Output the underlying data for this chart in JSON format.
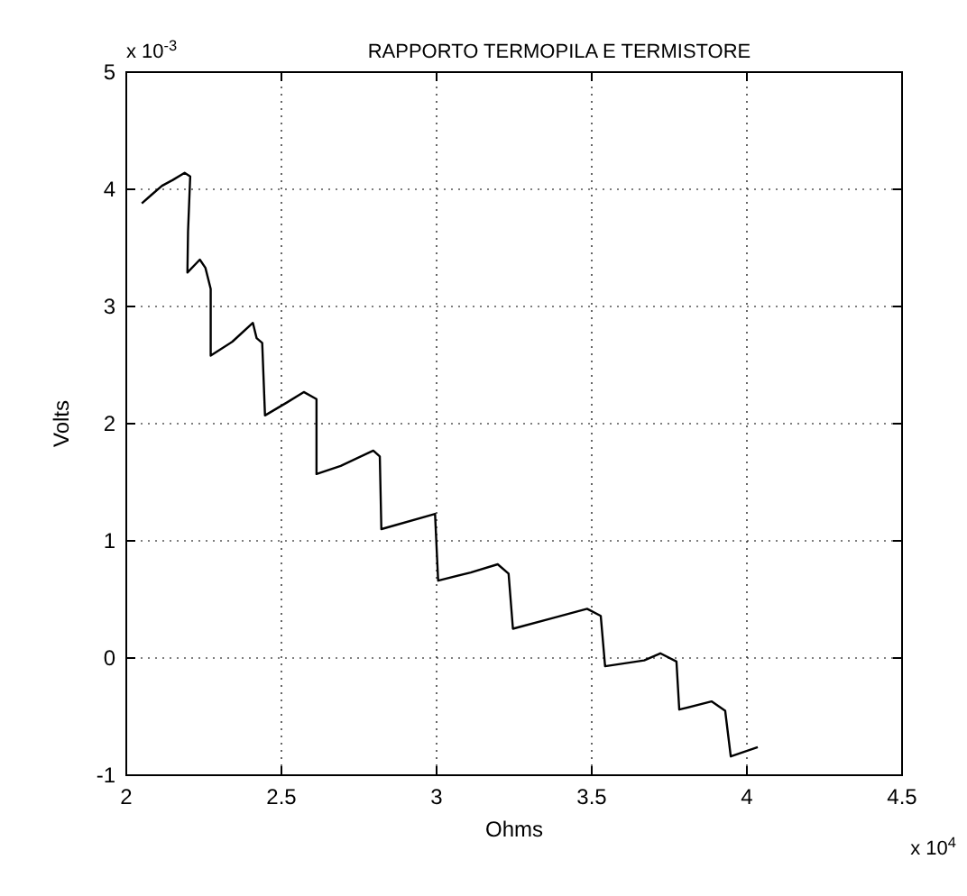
{
  "chart_data": {
    "type": "line",
    "title": "RAPPORTO TERMOPILA E TERMISTORE",
    "xlabel": "Ohms",
    "ylabel": "Volts",
    "annotations": [
      "x 10$^{-3}$",
      "x 10$^{4}$"
    ],
    "x": [
      2.05,
      2.08,
      2.115,
      2.15,
      2.188,
      2.206,
      2.199,
      2.197,
      2.237,
      2.255,
      2.272,
      2.272,
      2.342,
      2.408,
      2.42,
      2.438,
      2.447,
      2.517,
      2.572,
      2.613,
      2.613,
      2.691,
      2.796,
      2.817,
      2.822,
      2.995,
      3.005,
      3.11,
      3.197,
      3.232,
      3.246,
      3.372,
      3.485,
      3.529,
      3.543,
      3.669,
      3.721,
      3.773,
      3.782,
      3.886,
      3.93,
      3.948,
      4.035
    ],
    "series": [
      {
        "color": "#000000",
        "values": [
          3.88,
          3.95,
          4.03,
          4.08,
          4.14,
          4.11,
          3.64,
          3.29,
          3.4,
          3.33,
          3.15,
          2.58,
          2.7,
          2.86,
          2.73,
          2.69,
          2.07,
          2.18,
          2.27,
          2.21,
          1.57,
          1.64,
          1.77,
          1.72,
          1.1,
          1.23,
          0.66,
          0.73,
          0.8,
          0.72,
          0.25,
          0.34,
          0.42,
          0.36,
          -0.07,
          -0.02,
          0.04,
          -0.03,
          -0.44,
          -0.37,
          -0.45,
          -0.84,
          -0.76
        ]
      }
    ],
    "xlim": [
      2,
      4.5
    ],
    "xticks": [
      2,
      2.5,
      3,
      3.5,
      4,
      4.5
    ],
    "ylim": [
      -1,
      5
    ],
    "yticks": [
      -1,
      0,
      1,
      2,
      3,
      4,
      5
    ],
    "grid": true,
    "line_style": "solid"
  }
}
